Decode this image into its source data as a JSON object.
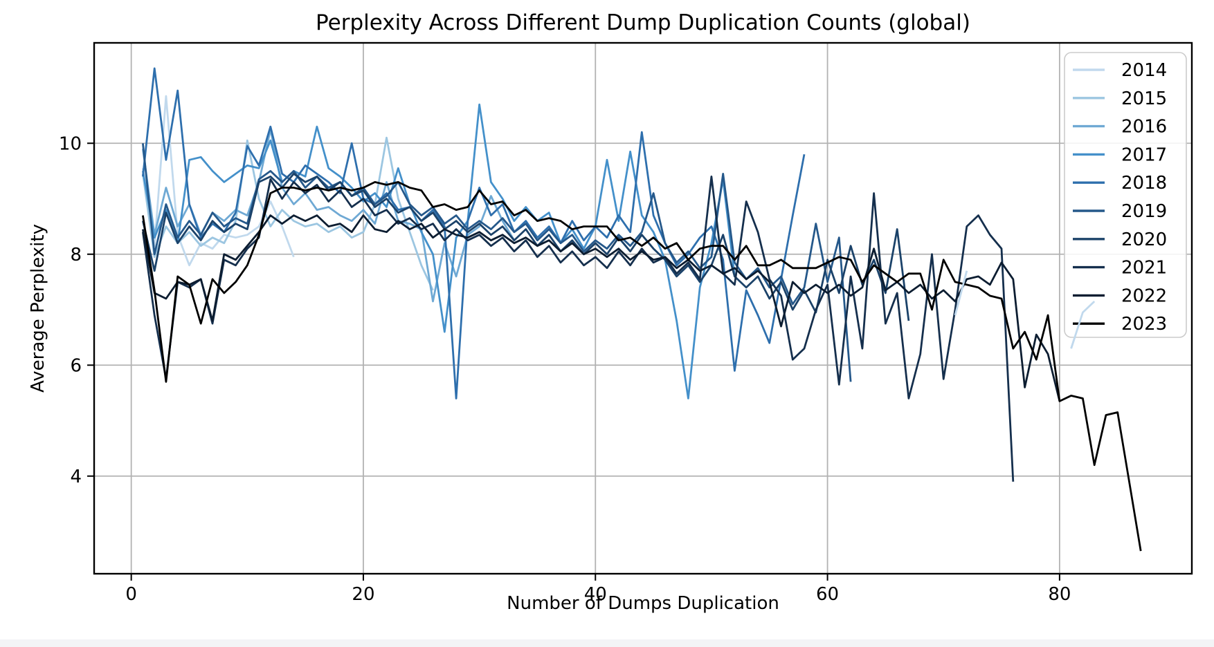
{
  "figure": {
    "title": "Perplexity Across Different Dump Duplication Counts (global)",
    "xlabel": "Number of Dumps Duplication",
    "ylabel": "Average Perplexity",
    "x_ticks": [
      0,
      20,
      40,
      60,
      80
    ],
    "y_ticks": [
      4,
      6,
      8,
      10
    ],
    "x_range": [
      -3.2,
      91.4
    ],
    "y_range": [
      2.24,
      11.81
    ],
    "grid": true,
    "grid_color": "#b2b2b2",
    "frame_color": "#000000",
    "background": "#ffffff"
  },
  "legend": {
    "position": "upper-right",
    "entries": [
      "2014",
      "2015",
      "2016",
      "2017",
      "2018",
      "2019",
      "2020",
      "2021",
      "2022",
      "2023"
    ]
  },
  "chart_data": {
    "type": "line",
    "title": "Perplexity Across Different Dump Duplication Counts (global)",
    "xlabel": "Number of Dumps Duplication",
    "ylabel": "Average Perplexity",
    "xlim": [
      -3.2,
      91.4
    ],
    "ylim": [
      2.24,
      11.81
    ],
    "grid": true,
    "legend_position": "upper right",
    "x_start": 1,
    "series": [
      {
        "name": "2014",
        "color": "#c1d9ed",
        "overlay_from_x": 70,
        "values": [
          9.55,
          8.15,
          10.85,
          8.35,
          7.8,
          8.2,
          8.1,
          8.35,
          8.3,
          8.35,
          8.5,
          8.95,
          8.5,
          7.95,
          null,
          null,
          null,
          null,
          null,
          null,
          null,
          null,
          null,
          null,
          null,
          null,
          null,
          null,
          null,
          null,
          null,
          null,
          null,
          null,
          null,
          null,
          null,
          null,
          null,
          null,
          null,
          null,
          null,
          null,
          null,
          null,
          null,
          null,
          null,
          null,
          null,
          null,
          null,
          null,
          null,
          null,
          null,
          null,
          null,
          null,
          null,
          null,
          null,
          null,
          null,
          null,
          null,
          null,
          null,
          null,
          6.9,
          7.7,
          null,
          null,
          null,
          null,
          null,
          null,
          null,
          null,
          6.3,
          6.95,
          7.15
        ]
      },
      {
        "name": "2015",
        "color": "#9cc6e1",
        "values": [
          9.45,
          7.95,
          8.5,
          8.2,
          8.4,
          8.15,
          8.3,
          8.2,
          8.6,
          10.05,
          9.0,
          8.5,
          8.8,
          8.6,
          8.5,
          8.55,
          8.4,
          8.5,
          8.3,
          8.4,
          8.9,
          10.1,
          9.0,
          8.4,
          7.8,
          7.35
        ]
      },
      {
        "name": "2016",
        "color": "#6fa9d4",
        "values": [
          9.9,
          8.35,
          9.2,
          8.5,
          8.9,
          8.35,
          8.75,
          8.6,
          8.8,
          8.7,
          9.3,
          10.25,
          9.2,
          8.9,
          9.1,
          8.8,
          8.85,
          8.7,
          8.6,
          8.8,
          8.55,
          9.3,
          8.6,
          8.55,
          8.45,
          7.15,
          8.2,
          7.6,
          8.35,
          8.5,
          9.05,
          8.6,
          8.25
        ]
      },
      {
        "name": "2017",
        "color": "#4490ca",
        "values": [
          9.5,
          8.3,
          8.8,
          8.2,
          9.7,
          9.75,
          9.5,
          9.3,
          9.45,
          9.6,
          9.55,
          10.05,
          9.3,
          9.5,
          9.4,
          10.3,
          9.55,
          9.4,
          9.2,
          8.95,
          9.1,
          8.85,
          9.55,
          8.9,
          8.4,
          8.0,
          6.6,
          8.3,
          8.6,
          10.7,
          9.3,
          9.0,
          8.6,
          8.85,
          8.6,
          8.75,
          8.2,
          8.45,
          8.1,
          8.5,
          9.7,
          8.6,
          9.85,
          8.7,
          8.4,
          7.9,
          6.8,
          5.4,
          7.4,
          8.2,
          9.35,
          7.6
        ]
      },
      {
        "name": "2018",
        "color": "#2e6fad",
        "values": [
          9.4,
          11.35,
          9.7,
          10.95,
          8.9,
          8.3,
          8.55,
          8.4,
          8.75,
          9.95,
          9.6,
          10.3,
          9.45,
          9.3,
          9.6,
          9.45,
          9.3,
          9.1,
          10.0,
          9.0,
          8.9,
          9.1,
          8.8,
          8.85,
          8.6,
          8.8,
          8.5,
          5.4,
          8.6,
          9.2,
          8.7,
          8.9,
          8.4,
          8.6,
          8.3,
          8.5,
          8.2,
          8.6,
          8.25,
          8.5,
          8.3,
          8.7,
          8.4,
          10.2,
          8.7,
          8.2,
          7.8,
          8.0,
          8.3,
          8.5,
          7.9,
          5.9,
          7.35,
          6.9,
          6.4,
          7.55,
          8.7,
          9.8
        ]
      },
      {
        "name": "2019",
        "color": "#25588a",
        "values": [
          10.0,
          8.0,
          8.9,
          8.3,
          8.6,
          8.35,
          8.75,
          8.5,
          8.65,
          8.55,
          9.35,
          9.5,
          9.3,
          9.5,
          9.2,
          9.4,
          9.2,
          9.3,
          9.05,
          9.2,
          8.9,
          9.05,
          9.3,
          8.9,
          8.7,
          8.85,
          8.55,
          8.7,
          8.45,
          8.6,
          8.45,
          8.65,
          8.4,
          8.55,
          8.25,
          8.45,
          8.2,
          8.35,
          8.05,
          8.25,
          8.1,
          8.35,
          8.15,
          8.4,
          9.1,
          8.2,
          7.85,
          8.05,
          7.75,
          7.95,
          9.45,
          7.85,
          7.55,
          7.75,
          7.4,
          7.6,
          7.1,
          7.4,
          8.55,
          7.5,
          8.3,
          5.7
        ]
      },
      {
        "name": "2020",
        "color": "#1b4269",
        "values": [
          8.6,
          7.7,
          8.75,
          8.2,
          8.5,
          8.25,
          8.6,
          8.4,
          8.55,
          8.45,
          9.3,
          9.4,
          9.2,
          9.45,
          9.3,
          9.4,
          9.15,
          9.3,
          9.05,
          9.15,
          8.85,
          9.0,
          8.75,
          8.85,
          8.6,
          8.75,
          8.45,
          8.6,
          8.4,
          8.55,
          8.35,
          8.5,
          8.25,
          8.45,
          8.15,
          8.35,
          8.05,
          8.25,
          8.0,
          8.2,
          8.0,
          8.3,
          8.05,
          8.35,
          8.1,
          7.9,
          7.6,
          7.8,
          7.5,
          7.8,
          8.35,
          7.6,
          7.4,
          7.6,
          7.2,
          7.5,
          7.0,
          7.35,
          6.95,
          7.9,
          7.3,
          8.15,
          7.45,
          7.9,
          7.3,
          8.45,
          6.8
        ]
      },
      {
        "name": "2021",
        "color": "#152f4d",
        "values": [
          8.4,
          6.9,
          5.75,
          7.5,
          7.4,
          7.55,
          6.75,
          7.9,
          7.8,
          8.1,
          8.3,
          9.35,
          9.0,
          9.3,
          9.1,
          9.25,
          8.95,
          9.15,
          8.85,
          9.0,
          8.7,
          8.8,
          8.55,
          8.65,
          8.45,
          8.55,
          8.25,
          8.45,
          8.25,
          8.35,
          8.15,
          8.3,
          8.05,
          8.25,
          7.95,
          8.15,
          7.85,
          8.05,
          7.8,
          7.95,
          7.75,
          8.05,
          7.8,
          8.1,
          7.85,
          7.95,
          7.65,
          7.85,
          7.55,
          9.4,
          7.65,
          7.45,
          8.95,
          8.4,
          7.55,
          7.25,
          6.1,
          6.3,
          7.0,
          7.45,
          5.65,
          7.6,
          6.3,
          9.1,
          6.75,
          7.3,
          5.4,
          6.2,
          8.0,
          5.75,
          7.0,
          8.5,
          8.7,
          8.35,
          8.1,
          3.9
        ]
      },
      {
        "name": "2022",
        "color": "#0c1d31",
        "values": [
          8.45,
          7.3,
          7.2,
          7.5,
          7.45,
          7.55,
          6.8,
          8.0,
          7.9,
          8.15,
          8.4,
          8.7,
          8.55,
          8.7,
          8.6,
          8.7,
          8.5,
          8.55,
          8.4,
          8.7,
          8.45,
          8.4,
          8.6,
          8.45,
          8.55,
          8.3,
          8.45,
          8.35,
          8.3,
          8.4,
          8.25,
          8.35,
          8.2,
          8.3,
          8.15,
          8.25,
          8.05,
          8.2,
          8.0,
          8.1,
          7.95,
          8.1,
          7.9,
          8.05,
          7.9,
          7.95,
          7.75,
          7.9,
          7.7,
          7.8,
          7.65,
          7.75,
          7.55,
          7.7,
          7.5,
          6.7,
          7.5,
          7.3,
          7.45,
          7.3,
          7.45,
          7.25,
          7.4,
          8.1,
          7.35,
          7.5,
          7.3,
          7.45,
          7.2,
          7.35,
          7.15,
          7.55,
          7.6,
          7.45,
          7.85,
          7.55,
          5.6,
          6.55,
          6.2,
          5.35
        ]
      },
      {
        "name": "2023",
        "color": "#000000",
        "values": [
          8.7,
          7.35,
          5.7,
          7.6,
          7.45,
          6.75,
          7.55,
          7.3,
          7.5,
          7.8,
          8.35,
          9.1,
          9.2,
          9.2,
          9.15,
          9.2,
          9.15,
          9.2,
          9.15,
          9.2,
          9.3,
          9.25,
          9.3,
          9.2,
          9.15,
          8.85,
          8.9,
          8.8,
          8.85,
          9.15,
          8.9,
          8.95,
          8.7,
          8.8,
          8.6,
          8.65,
          8.6,
          8.45,
          8.5,
          8.5,
          8.5,
          8.25,
          8.3,
          8.15,
          8.3,
          8.1,
          8.2,
          7.9,
          8.1,
          8.15,
          8.15,
          7.9,
          8.15,
          7.8,
          7.8,
          7.9,
          7.75,
          7.75,
          7.75,
          7.85,
          7.95,
          7.9,
          7.5,
          7.8,
          7.65,
          7.5,
          7.65,
          7.65,
          7.0,
          7.9,
          7.5,
          7.45,
          7.4,
          7.25,
          7.2,
          6.3,
          6.6,
          6.1,
          6.9,
          5.35,
          5.45,
          5.4,
          4.2,
          5.1,
          5.15,
          3.9,
          2.65
        ]
      }
    ]
  }
}
